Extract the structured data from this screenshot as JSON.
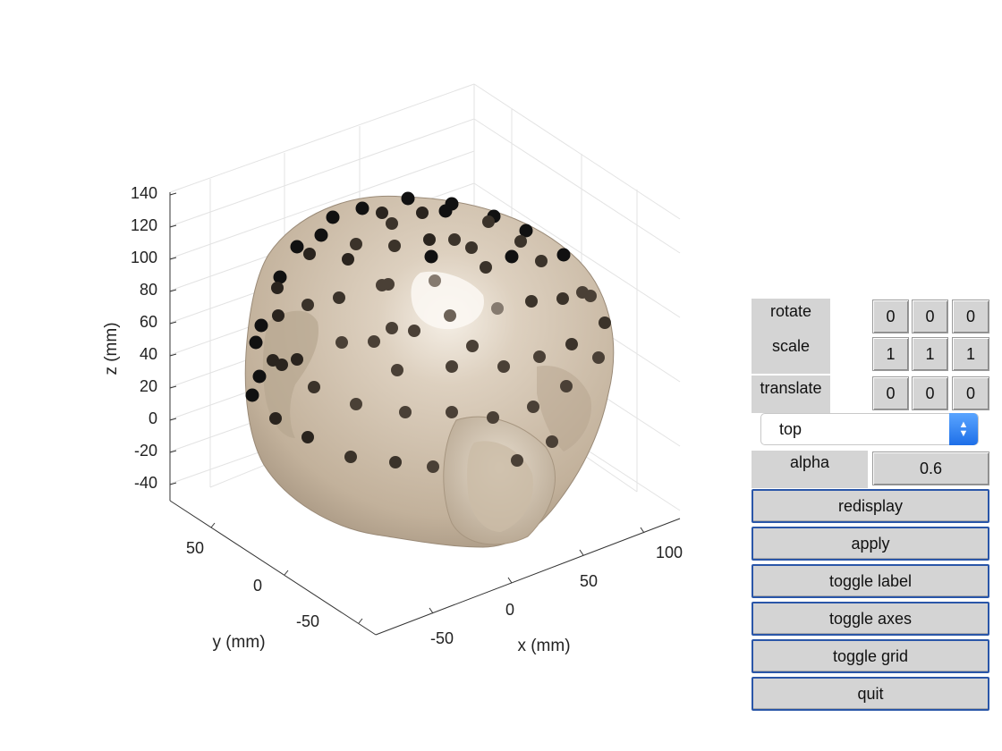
{
  "axes": {
    "xlabel": "x (mm)",
    "ylabel": "y (mm)",
    "zlabel": "z (mm)",
    "z_ticks": [
      "140",
      "120",
      "100",
      "80",
      "60",
      "40",
      "20",
      "0",
      "-20",
      "-40"
    ],
    "x_ticks": [
      "-50",
      "0",
      "50",
      "100"
    ],
    "y_ticks": [
      "50",
      "0",
      "-50"
    ]
  },
  "controls": {
    "rotate_label": "rotate",
    "scale_label": "scale",
    "translate_label": "translate",
    "rotate": [
      "0",
      "0",
      "0"
    ],
    "scale": [
      "1",
      "1",
      "1"
    ],
    "translate": [
      "0",
      "0",
      "0"
    ],
    "view_select": "top",
    "alpha_label": "alpha",
    "alpha": "0.6",
    "buttons": {
      "redisplay": "redisplay",
      "apply": "apply",
      "toggle_label": "toggle label",
      "toggle_axes": "toggle axes",
      "toggle_grid": "toggle grid",
      "quit": "quit"
    }
  },
  "colors": {
    "head": "#cdbca6",
    "electrode": "#111111",
    "button_border": "#2a56a8",
    "panel": "#d4d4d4"
  }
}
